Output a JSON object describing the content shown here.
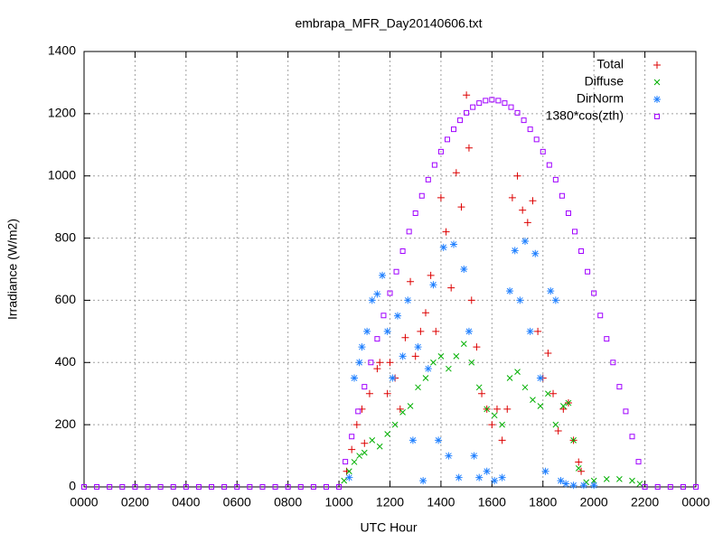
{
  "chart_data": {
    "type": "scatter",
    "title": "embrapa_MFR_Day20140606.txt",
    "xlabel": "UTC Hour",
    "ylabel": "Irradiance (W/m2)",
    "xlim": [
      0,
      24
    ],
    "ylim": [
      0,
      1400
    ],
    "xticks": [
      {
        "value": 0,
        "label": "0000"
      },
      {
        "value": 2,
        "label": "0200"
      },
      {
        "value": 4,
        "label": "0400"
      },
      {
        "value": 6,
        "label": "0600"
      },
      {
        "value": 8,
        "label": "0800"
      },
      {
        "value": 10,
        "label": "1000"
      },
      {
        "value": 12,
        "label": "1200"
      },
      {
        "value": 14,
        "label": "1400"
      },
      {
        "value": 16,
        "label": "1600"
      },
      {
        "value": 18,
        "label": "1800"
      },
      {
        "value": 20,
        "label": "2000"
      },
      {
        "value": 22,
        "label": "2200"
      },
      {
        "value": 24,
        "label": "0000"
      }
    ],
    "yticks": [
      0,
      200,
      400,
      600,
      800,
      1000,
      1200,
      1400
    ],
    "grid": true,
    "legend": "top-right",
    "series": [
      {
        "name": "Total",
        "color": "#dd0000",
        "marker": "plus",
        "x": [
          10.3,
          10.5,
          10.7,
          10.9,
          11.0,
          11.2,
          11.5,
          11.6,
          11.9,
          12.0,
          12.2,
          12.4,
          12.6,
          12.8,
          13.0,
          13.2,
          13.4,
          13.6,
          13.8,
          14.0,
          14.2,
          14.4,
          14.6,
          14.8,
          15.0,
          15.1,
          15.2,
          15.4,
          15.6,
          15.8,
          16.0,
          16.2,
          16.4,
          16.6,
          16.8,
          17.0,
          17.2,
          17.4,
          17.6,
          17.8,
          18.0,
          18.2,
          18.4,
          18.6,
          18.8,
          19.0,
          19.2,
          19.4,
          19.5
        ],
        "values": [
          50,
          120,
          200,
          250,
          140,
          300,
          380,
          400,
          300,
          400,
          350,
          250,
          480,
          660,
          420,
          500,
          560,
          680,
          500,
          930,
          820,
          640,
          1010,
          900,
          1260,
          1090,
          600,
          450,
          300,
          250,
          200,
          250,
          150,
          250,
          930,
          1000,
          890,
          850,
          920,
          500,
          350,
          430,
          300,
          180,
          250,
          270,
          150,
          80,
          50
        ]
      },
      {
        "name": "Diffuse",
        "color": "#00b000",
        "marker": "cross",
        "x": [
          10.2,
          10.4,
          10.6,
          10.8,
          11.0,
          11.3,
          11.6,
          11.9,
          12.2,
          12.5,
          12.8,
          13.1,
          13.4,
          13.7,
          14.0,
          14.3,
          14.6,
          14.9,
          15.2,
          15.5,
          15.8,
          16.1,
          16.4,
          16.7,
          17.0,
          17.3,
          17.6,
          17.9,
          18.2,
          18.5,
          18.8,
          19.0,
          19.2,
          19.4,
          19.7,
          20.0,
          20.5,
          21.0,
          21.5,
          21.8
        ],
        "values": [
          20,
          50,
          80,
          100,
          110,
          150,
          130,
          170,
          200,
          240,
          260,
          320,
          350,
          400,
          420,
          380,
          420,
          460,
          400,
          320,
          250,
          230,
          200,
          350,
          370,
          320,
          280,
          260,
          300,
          200,
          260,
          270,
          150,
          60,
          15,
          20,
          25,
          25,
          20,
          10
        ]
      },
      {
        "name": "DirNorm",
        "color": "#2080ff",
        "marker": "star",
        "x": [
          10.4,
          10.6,
          10.8,
          10.9,
          11.1,
          11.3,
          11.5,
          11.7,
          11.9,
          12.1,
          12.3,
          12.5,
          12.7,
          12.9,
          13.1,
          13.3,
          13.5,
          13.7,
          13.9,
          14.1,
          14.3,
          14.5,
          14.7,
          14.9,
          15.1,
          15.3,
          15.5,
          15.8,
          16.1,
          16.4,
          16.7,
          16.9,
          17.1,
          17.3,
          17.5,
          17.7,
          17.9,
          18.1,
          18.3,
          18.5,
          18.7,
          18.9,
          19.2,
          19.6,
          20.0
        ],
        "values": [
          30,
          350,
          400,
          450,
          500,
          600,
          620,
          680,
          500,
          350,
          550,
          420,
          600,
          150,
          450,
          20,
          380,
          650,
          150,
          770,
          100,
          780,
          30,
          700,
          500,
          100,
          30,
          50,
          20,
          30,
          630,
          760,
          600,
          790,
          500,
          750,
          350,
          50,
          630,
          600,
          20,
          10,
          5,
          5,
          5
        ]
      },
      {
        "name": "1380*cos(zth)",
        "color": "#a000ff",
        "marker": "square",
        "x": [
          0,
          0.5,
          1,
          1.5,
          2,
          2.5,
          3,
          3.5,
          4,
          4.5,
          5,
          5.5,
          6,
          6.5,
          7,
          7.5,
          8,
          8.5,
          9,
          9.5,
          10,
          10.25,
          10.5,
          10.75,
          11,
          11.25,
          11.5,
          11.75,
          12,
          12.25,
          12.5,
          12.75,
          13,
          13.25,
          13.5,
          13.75,
          14,
          14.25,
          14.5,
          14.75,
          15,
          15.25,
          15.5,
          15.75,
          16,
          16.25,
          16.5,
          16.75,
          17,
          17.25,
          17.5,
          17.75,
          18,
          18.25,
          18.5,
          18.75,
          19,
          19.25,
          19.5,
          19.75,
          20,
          20.25,
          20.5,
          20.75,
          21,
          21.25,
          21.5,
          21.75,
          22,
          22.5,
          23,
          23.5,
          24
        ],
        "values": [
          0,
          0,
          0,
          0,
          0,
          0,
          0,
          0,
          0,
          0,
          0,
          0,
          0,
          0,
          0,
          0,
          0,
          0,
          0,
          0,
          0,
          81,
          162,
          243,
          322,
          400,
          476,
          551,
          623,
          692,
          758,
          821,
          880,
          936,
          988,
          1035,
          1078,
          1117,
          1150,
          1179,
          1203,
          1221,
          1234,
          1242,
          1245,
          1242,
          1234,
          1221,
          1203,
          1179,
          1150,
          1117,
          1078,
          1035,
          988,
          936,
          880,
          821,
          758,
          692,
          623,
          551,
          476,
          400,
          322,
          243,
          162,
          81,
          0,
          0,
          0,
          0,
          0
        ]
      }
    ]
  }
}
